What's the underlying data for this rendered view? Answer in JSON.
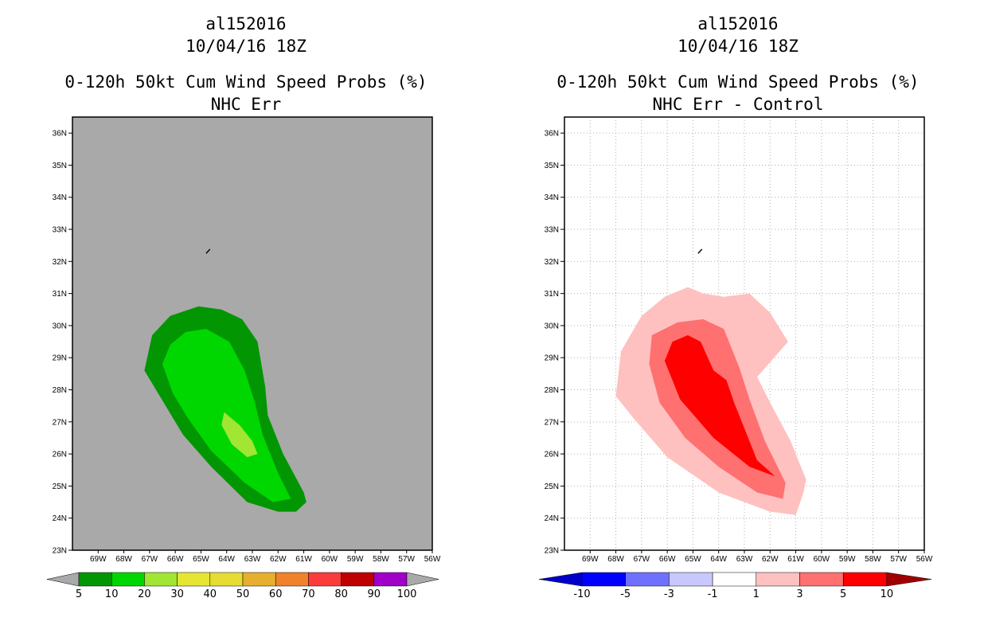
{
  "chart_data": [
    {
      "type": "contour-map",
      "storm_id": "al152016",
      "datetime": "10/04/16 18Z",
      "title": "0-120h 50kt Cum Wind Speed Probs (%)",
      "subtitle": "NHC Err",
      "lon_ticks": [
        "69W",
        "68W",
        "67W",
        "66W",
        "65W",
        "64W",
        "63W",
        "62W",
        "61W",
        "60W",
        "59W",
        "58W",
        "57W",
        "56W"
      ],
      "lat_ticks": [
        "23N",
        "24N",
        "25N",
        "26N",
        "27N",
        "28N",
        "29N",
        "30N",
        "31N",
        "32N",
        "33N",
        "34N",
        "35N",
        "36N"
      ],
      "lon_range": [
        -70,
        -56
      ],
      "lat_range": [
        23,
        36.5
      ],
      "background": "#a9a9a9",
      "colorbar_levels": [
        "5",
        "10",
        "20",
        "30",
        "40",
        "50",
        "60",
        "70",
        "80",
        "90",
        "100"
      ],
      "colorbar_colors": [
        "#039603",
        "#00d700",
        "#a0e632",
        "#e6e632",
        "#e6dc32",
        "#e6af2d",
        "#f0822b",
        "#fa3c3c",
        "#be0000",
        "#a000c8"
      ],
      "contours": [
        {
          "level": "5-10",
          "color": "#039603",
          "polygon": [
            [
              -65.1,
              30.6
            ],
            [
              -64.2,
              30.5
            ],
            [
              -63.4,
              30.2
            ],
            [
              -62.8,
              29.5
            ],
            [
              -62.5,
              28.1
            ],
            [
              -62.4,
              27.2
            ],
            [
              -61.8,
              26.0
            ],
            [
              -61.0,
              24.8
            ],
            [
              -60.9,
              24.5
            ],
            [
              -61.3,
              24.2
            ],
            [
              -62.0,
              24.2
            ],
            [
              -63.2,
              24.5
            ],
            [
              -64.6,
              25.6
            ],
            [
              -65.7,
              26.6
            ],
            [
              -66.6,
              27.8
            ],
            [
              -67.2,
              28.6
            ],
            [
              -66.9,
              29.7
            ],
            [
              -66.2,
              30.3
            ]
          ]
        },
        {
          "level": "10-20",
          "color": "#00d700",
          "polygon": [
            [
              -64.8,
              29.9
            ],
            [
              -63.9,
              29.5
            ],
            [
              -63.3,
              28.6
            ],
            [
              -62.9,
              27.6
            ],
            [
              -62.6,
              26.6
            ],
            [
              -62.0,
              25.4
            ],
            [
              -61.5,
              24.6
            ],
            [
              -62.2,
              24.5
            ],
            [
              -63.3,
              25.1
            ],
            [
              -64.6,
              26.1
            ],
            [
              -65.5,
              27.1
            ],
            [
              -66.1,
              27.9
            ],
            [
              -66.5,
              28.8
            ],
            [
              -66.2,
              29.4
            ],
            [
              -65.6,
              29.8
            ]
          ]
        },
        {
          "level": "20-30",
          "color": "#a0e632",
          "polygon": [
            [
              -64.1,
              27.3
            ],
            [
              -63.5,
              26.9
            ],
            [
              -63.0,
              26.4
            ],
            [
              -62.8,
              26.0
            ],
            [
              -63.2,
              25.9
            ],
            [
              -63.8,
              26.3
            ],
            [
              -64.2,
              26.9
            ]
          ]
        }
      ]
    },
    {
      "type": "contour-map",
      "storm_id": "al152016",
      "datetime": "10/04/16 18Z",
      "title": "0-120h 50kt Cum Wind Speed Probs (%)",
      "subtitle": "NHC Err - Control",
      "lon_ticks": [
        "69W",
        "68W",
        "67W",
        "66W",
        "65W",
        "64W",
        "63W",
        "62W",
        "61W",
        "60W",
        "59W",
        "58W",
        "57W",
        "56W"
      ],
      "lat_ticks": [
        "23N",
        "24N",
        "25N",
        "26N",
        "27N",
        "28N",
        "29N",
        "30N",
        "31N",
        "32N",
        "33N",
        "34N",
        "35N",
        "36N"
      ],
      "lon_range": [
        -70,
        -56
      ],
      "lat_range": [
        23,
        36.5
      ],
      "background": "#ffffff",
      "grid": true,
      "colorbar_levels": [
        "-10",
        "-5",
        "-3",
        "-1",
        "1",
        "3",
        "5",
        "10"
      ],
      "colorbar_colors": [
        "#0000c8",
        "#0000ff",
        "#7070ff",
        "#c8c8ff",
        "#ffffff",
        "#ffc0c0",
        "#ff7070",
        "#ff0000",
        "#a00000"
      ],
      "contours": [
        {
          "level": "1-3",
          "color": "#ffc0c0",
          "polygon": [
            [
              -65.2,
              31.2
            ],
            [
              -64.6,
              31.0
            ],
            [
              -63.8,
              30.9
            ],
            [
              -62.8,
              31.0
            ],
            [
              -62.0,
              30.4
            ],
            [
              -61.3,
              29.5
            ],
            [
              -62.5,
              28.4
            ],
            [
              -62.0,
              27.6
            ],
            [
              -61.2,
              26.4
            ],
            [
              -60.6,
              25.2
            ],
            [
              -60.7,
              24.8
            ],
            [
              -61.0,
              24.1
            ],
            [
              -62.0,
              24.2
            ],
            [
              -64.0,
              24.8
            ],
            [
              -66.0,
              25.9
            ],
            [
              -67.3,
              27.1
            ],
            [
              -68.0,
              27.8
            ],
            [
              -67.8,
              29.2
            ],
            [
              -67.0,
              30.3
            ],
            [
              -66.1,
              30.9
            ]
          ]
        },
        {
          "level": "3-5",
          "color": "#ff7070",
          "polygon": [
            [
              -64.6,
              30.2
            ],
            [
              -63.8,
              29.9
            ],
            [
              -63.2,
              28.7
            ],
            [
              -62.8,
              27.7
            ],
            [
              -62.2,
              26.4
            ],
            [
              -61.4,
              25.1
            ],
            [
              -61.5,
              24.6
            ],
            [
              -62.5,
              24.8
            ],
            [
              -64.0,
              25.6
            ],
            [
              -65.3,
              26.5
            ],
            [
              -66.3,
              27.6
            ],
            [
              -66.7,
              28.8
            ],
            [
              -66.6,
              29.7
            ],
            [
              -65.6,
              30.1
            ]
          ]
        },
        {
          "level": "5-10",
          "color": "#ff0000",
          "polygon": [
            [
              -65.2,
              29.7
            ],
            [
              -64.7,
              29.5
            ],
            [
              -64.2,
              28.6
            ],
            [
              -63.7,
              28.3
            ],
            [
              -63.4,
              27.6
            ],
            [
              -63.0,
              26.8
            ],
            [
              -62.5,
              25.8
            ],
            [
              -61.8,
              25.3
            ],
            [
              -62.8,
              25.6
            ],
            [
              -64.2,
              26.5
            ],
            [
              -65.5,
              27.7
            ],
            [
              -66.1,
              28.9
            ],
            [
              -65.8,
              29.5
            ]
          ]
        }
      ]
    }
  ]
}
